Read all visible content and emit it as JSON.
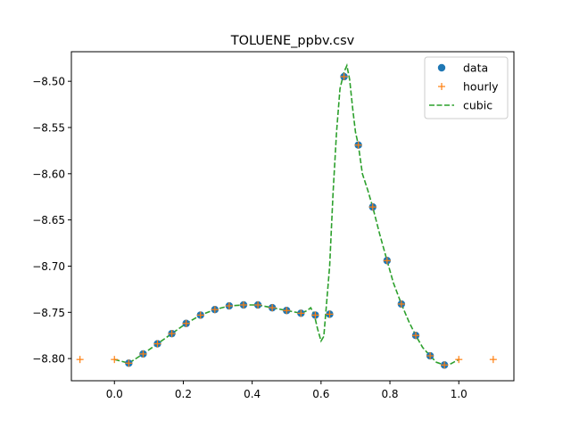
{
  "chart_data": {
    "type": "line",
    "title": "TOLUENE_ppbv.csv",
    "xlabel": "",
    "ylabel": "",
    "xlim": [
      -0.125,
      1.16
    ],
    "ylim": [
      -8.824,
      -8.468
    ],
    "x_ticks": [
      0.0,
      0.2,
      0.4,
      0.6,
      0.8,
      1.0
    ],
    "x_tick_labels": [
      "0.0",
      "0.2",
      "0.4",
      "0.6",
      "0.8",
      "1.0"
    ],
    "y_ticks": [
      -8.5,
      -8.55,
      -8.6,
      -8.65,
      -8.7,
      -8.75,
      -8.8
    ],
    "y_tick_labels": [
      "−8.50",
      "−8.55",
      "−8.60",
      "−8.65",
      "−8.70",
      "−8.75",
      "−8.80"
    ],
    "grid": false,
    "legend": "top-right",
    "series": [
      {
        "name": "data",
        "style": "markers-circle",
        "color": "#1f77b4",
        "x": [
          0.0417,
          0.0833,
          0.125,
          0.1667,
          0.2083,
          0.25,
          0.2917,
          0.3333,
          0.375,
          0.4167,
          0.4583,
          0.5,
          0.5417,
          0.5833,
          0.625,
          0.6667,
          0.7083,
          0.75,
          0.7917,
          0.8333,
          0.875,
          0.9167,
          0.9583
        ],
        "y": [
          -8.805,
          -8.795,
          -8.784,
          -8.773,
          -8.762,
          -8.753,
          -8.747,
          -8.743,
          -8.742,
          -8.742,
          -8.745,
          -8.748,
          -8.751,
          -8.753,
          -8.752,
          -8.495,
          -8.569,
          -8.636,
          -8.694,
          -8.741,
          -8.775,
          -8.797,
          -8.807
        ]
      },
      {
        "name": "hourly",
        "style": "markers-plus",
        "color": "#ff7f0e",
        "x": [
          -0.1,
          0.0,
          0.0417,
          0.0833,
          0.125,
          0.1667,
          0.2083,
          0.25,
          0.2917,
          0.3333,
          0.375,
          0.4167,
          0.4583,
          0.5,
          0.5417,
          0.5833,
          0.625,
          0.6667,
          0.7083,
          0.75,
          0.7917,
          0.8333,
          0.875,
          0.9167,
          0.9583,
          1.0,
          1.1
        ],
        "y": [
          -8.801,
          -8.801,
          -8.805,
          -8.795,
          -8.784,
          -8.773,
          -8.762,
          -8.753,
          -8.747,
          -8.743,
          -8.742,
          -8.742,
          -8.745,
          -8.748,
          -8.751,
          -8.753,
          -8.752,
          -8.495,
          -8.569,
          -8.636,
          -8.694,
          -8.741,
          -8.775,
          -8.797,
          -8.807,
          -8.801,
          -8.801
        ]
      },
      {
        "name": "cubic",
        "style": "dashed-line",
        "color": "#2ca02c",
        "x": [
          0.0,
          0.0417,
          0.0833,
          0.125,
          0.1667,
          0.2083,
          0.25,
          0.2917,
          0.3333,
          0.375,
          0.4167,
          0.4583,
          0.5,
          0.5417,
          0.56,
          0.57,
          0.58,
          0.59,
          0.6,
          0.608,
          0.615,
          0.625,
          0.635,
          0.645,
          0.655,
          0.6667,
          0.675,
          0.683,
          0.692,
          0.7,
          0.7083,
          0.72,
          0.735,
          0.75,
          0.77,
          0.7917,
          0.81,
          0.8333,
          0.855,
          0.875,
          0.895,
          0.9167,
          0.935,
          0.9583,
          0.975,
          0.99,
          1.0
        ],
        "y": [
          -8.801,
          -8.805,
          -8.795,
          -8.784,
          -8.773,
          -8.762,
          -8.753,
          -8.747,
          -8.743,
          -8.742,
          -8.742,
          -8.745,
          -8.748,
          -8.751,
          -8.748,
          -8.745,
          -8.752,
          -8.768,
          -8.781,
          -8.776,
          -8.745,
          -8.7,
          -8.62,
          -8.555,
          -8.508,
          -8.49,
          -8.483,
          -8.498,
          -8.53,
          -8.555,
          -8.569,
          -8.6,
          -8.617,
          -8.636,
          -8.665,
          -8.694,
          -8.718,
          -8.741,
          -8.76,
          -8.775,
          -8.788,
          -8.797,
          -8.804,
          -8.807,
          -8.806,
          -8.803,
          -8.801
        ]
      }
    ]
  }
}
